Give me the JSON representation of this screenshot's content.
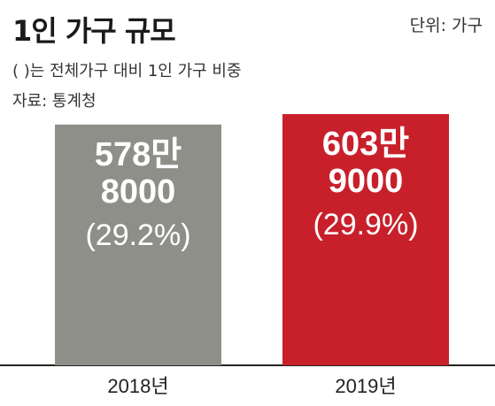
{
  "header": {
    "title": "1인 가구 규모",
    "unit": "단위: 가구",
    "subtitle": "(   )는 전체가구 대비 1인 가구 비중",
    "source": "자료: 통계청"
  },
  "colors": {
    "bar_2018": "#8f8f89",
    "bar_2019": "#c8202b",
    "baseline": "#222222"
  },
  "chart_data": {
    "type": "bar",
    "title": "1인 가구 규모",
    "unit": "단위: 가구",
    "ylim": [
      0,
      6039000
    ],
    "categories": [
      "2018년",
      "2019년"
    ],
    "values": [
      5788000,
      6039000
    ],
    "value_labels": [
      [
        "578만",
        "8000"
      ],
      [
        "603만",
        "9000"
      ]
    ],
    "share_labels": [
      "(29.2%)",
      "(29.9%)"
    ],
    "share_values": [
      29.2,
      29.9
    ],
    "grid": false
  }
}
